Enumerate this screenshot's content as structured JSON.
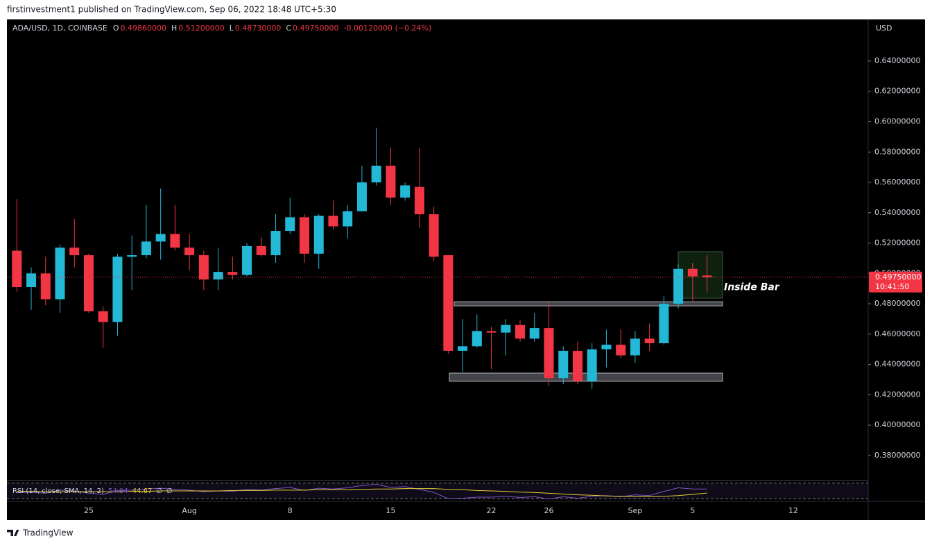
{
  "header": {
    "publisher": "firstinvestment1 published on TradingView.com, Sep 06, 2022 18:48 UTC+5:30"
  },
  "footer": {
    "brand": "TradingView"
  },
  "chart_data": [
    {
      "type": "candlestick",
      "symbol": "ADA/USD, 1D, COINBASE",
      "legend": [
        {
          "key": "O",
          "value": "0.49860000"
        },
        {
          "key": "H",
          "value": "0.51200000"
        },
        {
          "key": "L",
          "value": "0.48730000"
        },
        {
          "key": "C",
          "value": "0.49750000"
        }
      ],
      "change": "-0.00120000 (−0.24%)",
      "currency": "USD",
      "up_color": "#22b8d6",
      "down_color": "#f23645",
      "categories": [
        null,
        null,
        null,
        null,
        null,
        "25",
        null,
        null,
        null,
        null,
        null,
        null,
        "Aug",
        null,
        null,
        null,
        null,
        null,
        null,
        "8",
        null,
        null,
        null,
        null,
        null,
        null,
        "15",
        null,
        null,
        null,
        null,
        null,
        null,
        "22",
        null,
        null,
        null,
        "26",
        null,
        null,
        null,
        null,
        null,
        "Sep",
        null,
        null,
        null,
        "5",
        null,
        null,
        null,
        null,
        null,
        null,
        "12",
        null,
        null,
        null,
        null
      ],
      "open": [
        0.515,
        0.491,
        0.5,
        0.483,
        0.517,
        0.512,
        0.475,
        0.468,
        0.511,
        0.512,
        0.521,
        0.526,
        0.517,
        0.512,
        0.496,
        0.501,
        0.499,
        0.518,
        0.512,
        0.528,
        0.537,
        0.513,
        0.538,
        0.531,
        0.541,
        0.56,
        0.571,
        0.55,
        0.557,
        0.539,
        0.512,
        0.449,
        0.452,
        0.462,
        0.461,
        0.466,
        0.457,
        0.464,
        0.431,
        0.449,
        0.429,
        0.45,
        0.453,
        0.446,
        0.457,
        0.454,
        0.48,
        0.503,
        0.4986,
        null,
        null,
        null,
        null,
        null,
        null,
        null,
        null,
        null,
        null
      ],
      "high": [
        0.549,
        0.504,
        0.511,
        0.519,
        0.536,
        0.513,
        0.478,
        0.513,
        0.525,
        0.545,
        0.556,
        0.545,
        0.526,
        0.515,
        0.517,
        0.511,
        0.52,
        0.524,
        0.539,
        0.55,
        0.539,
        0.539,
        0.548,
        0.545,
        0.571,
        0.596,
        0.583,
        0.56,
        0.583,
        0.544,
        0.512,
        0.47,
        0.473,
        0.465,
        0.47,
        0.469,
        0.474,
        0.482,
        0.452,
        0.455,
        0.454,
        0.463,
        0.463,
        0.462,
        0.467,
        0.485,
        0.506,
        0.507,
        0.512,
        null,
        null,
        null,
        null,
        null,
        null,
        null,
        null,
        null,
        null
      ],
      "low": [
        0.488,
        0.476,
        0.479,
        0.474,
        0.504,
        0.474,
        0.451,
        0.459,
        0.489,
        0.51,
        0.509,
        0.515,
        0.502,
        0.489,
        0.489,
        0.496,
        0.498,
        0.511,
        0.507,
        0.526,
        0.507,
        0.503,
        0.529,
        0.523,
        0.541,
        0.558,
        0.545,
        0.548,
        0.53,
        0.508,
        0.447,
        0.435,
        0.451,
        0.437,
        0.446,
        0.455,
        0.455,
        0.426,
        0.427,
        0.427,
        0.424,
        0.438,
        0.444,
        0.441,
        0.449,
        0.453,
        0.477,
        0.482,
        0.4873,
        null,
        null,
        null,
        null,
        null,
        null,
        null,
        null,
        null,
        null
      ],
      "close": [
        0.491,
        0.5,
        0.483,
        0.517,
        0.512,
        0.475,
        0.468,
        0.511,
        0.512,
        0.521,
        0.526,
        0.517,
        0.512,
        0.496,
        0.501,
        0.499,
        0.518,
        0.512,
        0.528,
        0.537,
        0.513,
        0.538,
        0.531,
        0.541,
        0.56,
        0.571,
        0.55,
        0.558,
        0.539,
        0.511,
        0.449,
        0.452,
        0.462,
        0.461,
        0.466,
        0.457,
        0.464,
        0.431,
        0.449,
        0.429,
        0.45,
        0.453,
        0.446,
        0.457,
        0.454,
        0.48,
        0.503,
        0.498,
        0.4975,
        null,
        null,
        null,
        null,
        null,
        null,
        null,
        null,
        null,
        null
      ],
      "ylim": [
        0.3635,
        0.6674
      ],
      "yticks": [
        {
          "value": 0.38,
          "label": "0.38000000"
        },
        {
          "value": 0.4,
          "label": "0.40000000"
        },
        {
          "value": 0.42,
          "label": "0.42000000"
        },
        {
          "value": 0.44,
          "label": "0.44000000"
        },
        {
          "value": 0.46,
          "label": "0.46000000"
        },
        {
          "value": 0.48,
          "label": "0.48000000"
        },
        {
          "value": 0.5,
          "label": "0.50000000"
        },
        {
          "value": 0.52,
          "label": "0.52000000"
        },
        {
          "value": 0.54,
          "label": "0.54000000"
        },
        {
          "value": 0.56,
          "label": "0.56000000"
        },
        {
          "value": 0.58,
          "label": "0.58000000"
        },
        {
          "value": 0.6,
          "label": "0.60000000"
        },
        {
          "value": 0.62,
          "label": "0.62000000"
        },
        {
          "value": 0.64,
          "label": "0.64000000"
        }
      ],
      "last_price": {
        "value": 0.4975,
        "label": "0.49750000",
        "countdown": "10:41:50"
      },
      "zones": [
        {
          "range": [
            0.4786,
            0.4813
          ]
        },
        {
          "range": [
            0.4289,
            0.4343
          ]
        },
        {
          "range": [
            0.4837,
            0.5143
          ],
          "label": "Inside Bar"
        }
      ]
    },
    {
      "type": "rsi",
      "title": "RSI (14, close, SMA, 14, 2)",
      "series": [
        {
          "name": "RSI",
          "color": "#7e57c2",
          "value_label": "54.94",
          "values": [
            45,
            47,
            44,
            52,
            50,
            44,
            41,
            51,
            52,
            55,
            57,
            54,
            52,
            48,
            50,
            49,
            54,
            52,
            56,
            59,
            51,
            57,
            55,
            58,
            64,
            67,
            59,
            61,
            54,
            46,
            30,
            31,
            34,
            34,
            36,
            33,
            35,
            29,
            35,
            31,
            36,
            38,
            35,
            40,
            38,
            49,
            58,
            55,
            54.94,
            null,
            null,
            null,
            null,
            null,
            null,
            null,
            null,
            null,
            null
          ]
        },
        {
          "name": "SMA",
          "color": "#e8cf3a",
          "value_label": "44.67",
          "values": [
            49,
            49,
            48,
            48,
            48,
            48,
            48,
            48,
            49,
            49,
            50,
            50,
            50,
            50,
            50,
            51,
            51,
            51,
            52,
            52,
            52,
            53,
            53,
            53,
            54,
            55,
            55,
            56,
            56,
            56,
            54,
            53,
            51,
            50,
            49,
            47,
            46,
            44,
            42,
            40,
            39,
            37,
            36,
            35,
            35,
            36,
            38,
            41,
            44.67,
            null,
            null,
            null,
            null,
            null,
            null,
            null,
            null,
            null,
            null
          ]
        }
      ],
      "extra_labels": [
        "∅",
        "∅"
      ],
      "ylim": [
        25,
        75
      ],
      "levels": [
        70,
        30
      ]
    }
  ]
}
